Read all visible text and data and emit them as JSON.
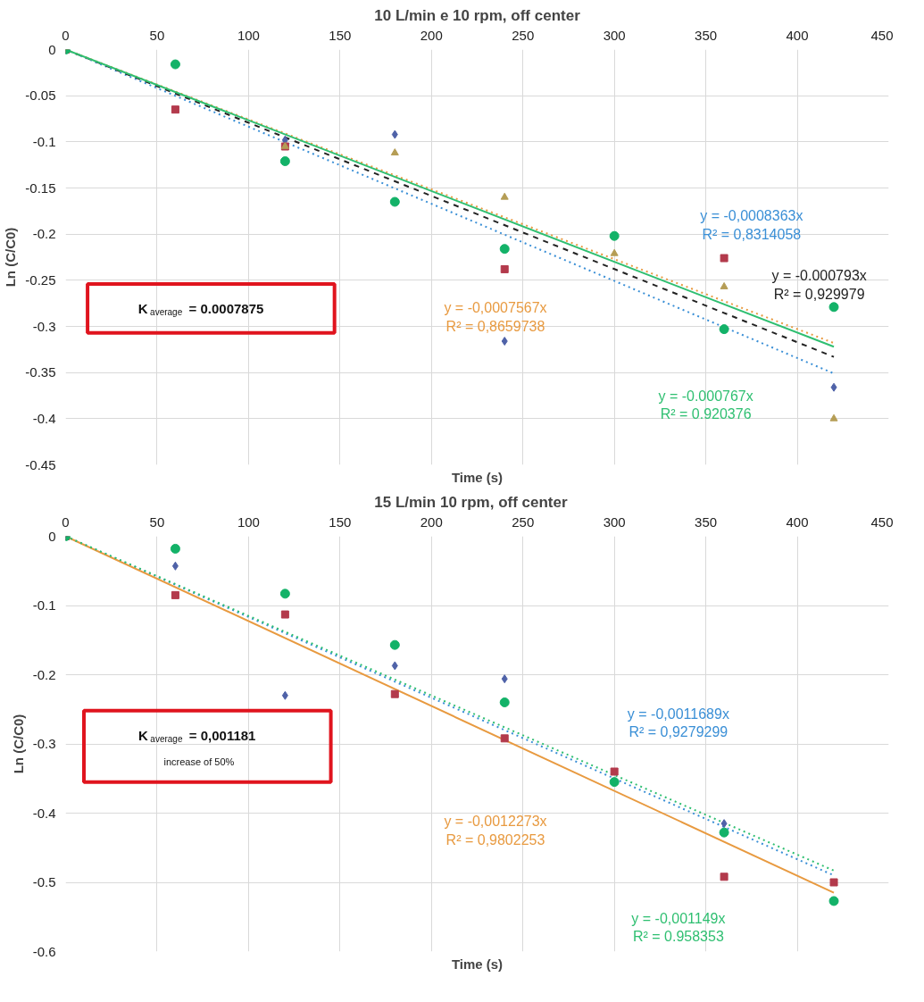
{
  "chart_data": [
    {
      "type": "scatter",
      "title": "10 L/min e 10 rpm, off center",
      "xlabel": "Time (s)",
      "ylabel": "Ln (C/C0)",
      "x": [
        0,
        60,
        120,
        180,
        240,
        300,
        360,
        420
      ],
      "xlim": [
        0,
        450
      ],
      "xticks": [
        0,
        50,
        100,
        150,
        200,
        250,
        300,
        350,
        400,
        450
      ],
      "ylim": [
        -0.45,
        0
      ],
      "yticks": [
        0,
        -0.05,
        -0.1,
        -0.15,
        -0.2,
        -0.25,
        -0.3,
        -0.35,
        -0.4,
        -0.45
      ],
      "grid": true,
      "annotations": [
        "K$_{average}$ = 0.0007875"
      ],
      "series": [
        {
          "marker": "diamond",
          "color": "#4f62a8",
          "values": [
            0,
            null,
            -0.098,
            -0.092,
            -0.316,
            null,
            null,
            -0.366
          ]
        },
        {
          "marker": "square",
          "color": "#b33a4c",
          "values": [
            0,
            -0.065,
            -0.105,
            null,
            -0.238,
            null,
            -0.226,
            null
          ]
        },
        {
          "marker": "triangle",
          "color": "#b59d55",
          "values": [
            0,
            null,
            -0.105,
            -0.112,
            -0.16,
            -0.221,
            -0.257,
            -0.4
          ]
        },
        {
          "marker": "circle",
          "color": "#13b268",
          "values": [
            0,
            -0.016,
            -0.121,
            -0.165,
            -0.216,
            -0.202,
            -0.303,
            -0.279
          ]
        },
        {
          "type": "line",
          "line_style": "dotted",
          "name": "y = -0,0008363x\nR² = 0,8314058",
          "color": "#3a8fd6",
          "values": [
            0,
            null,
            null,
            null,
            null,
            null,
            null,
            -0.351
          ]
        },
        {
          "type": "line",
          "line_style": "dashed",
          "name": "y = -0.000793x\nR² = 0,929979",
          "color": "#222222",
          "values": [
            0,
            null,
            null,
            null,
            null,
            null,
            null,
            -0.333
          ]
        },
        {
          "type": "line",
          "line_style": "dotted",
          "name": "y = -0,0007567x\nR² = 0,8659738",
          "color": "#e89a40",
          "values": [
            0,
            null,
            null,
            null,
            null,
            null,
            null,
            -0.318
          ]
        },
        {
          "type": "line",
          "line_style": "solid",
          "name": "y = -0.000767x\nR² = 0.920376",
          "color": "#2fbf71",
          "values": [
            0,
            null,
            null,
            null,
            null,
            null,
            null,
            -0.322
          ]
        }
      ]
    },
    {
      "type": "scatter",
      "title": "15 L/min    10 rpm, off center",
      "xlabel": "Time (s)",
      "ylabel": "Ln (C/C0)",
      "x": [
        0,
        60,
        120,
        180,
        240,
        300,
        360,
        420
      ],
      "xlim": [
        0,
        450
      ],
      "xticks": [
        0,
        50,
        100,
        150,
        200,
        250,
        300,
        350,
        400,
        450
      ],
      "ylim": [
        -0.6,
        0
      ],
      "yticks": [
        0,
        -0.1,
        -0.2,
        -0.3,
        -0.4,
        -0.5,
        -0.6
      ],
      "grid": true,
      "annotations": [
        "K$_{average}$ = 0,001181",
        "increase of 50%"
      ],
      "series": [
        {
          "marker": "diamond",
          "color": "#4f62a8",
          "values": [
            0,
            -0.043,
            -0.23,
            -0.187,
            -0.206,
            null,
            -0.415,
            null
          ]
        },
        {
          "marker": "square",
          "color": "#b33a4c",
          "values": [
            0,
            -0.085,
            -0.113,
            -0.228,
            -0.292,
            -0.34,
            -0.492,
            -0.5
          ]
        },
        {
          "marker": "circle",
          "color": "#13b268",
          "values": [
            0,
            -0.018,
            -0.083,
            -0.157,
            -0.24,
            -0.355,
            -0.428,
            -0.527
          ]
        },
        {
          "type": "line",
          "line_style": "dotted",
          "name": "y = -0,0011689x\nR² = 0,9279299",
          "color": "#3a8fd6",
          "values": [
            0,
            null,
            null,
            null,
            null,
            null,
            null,
            -0.49
          ]
        },
        {
          "type": "line",
          "line_style": "solid",
          "name": "y = -0,0012273x\nR² = 0,9802253",
          "color": "#e89a40",
          "values": [
            0,
            null,
            null,
            null,
            null,
            null,
            null,
            -0.515
          ]
        },
        {
          "type": "line",
          "line_style": "dotted",
          "name": "y = -0,001149x\nR² = 0.958353",
          "color": "#2fbf71",
          "values": [
            0,
            null,
            null,
            null,
            null,
            null,
            null,
            -0.483
          ]
        }
      ]
    }
  ]
}
